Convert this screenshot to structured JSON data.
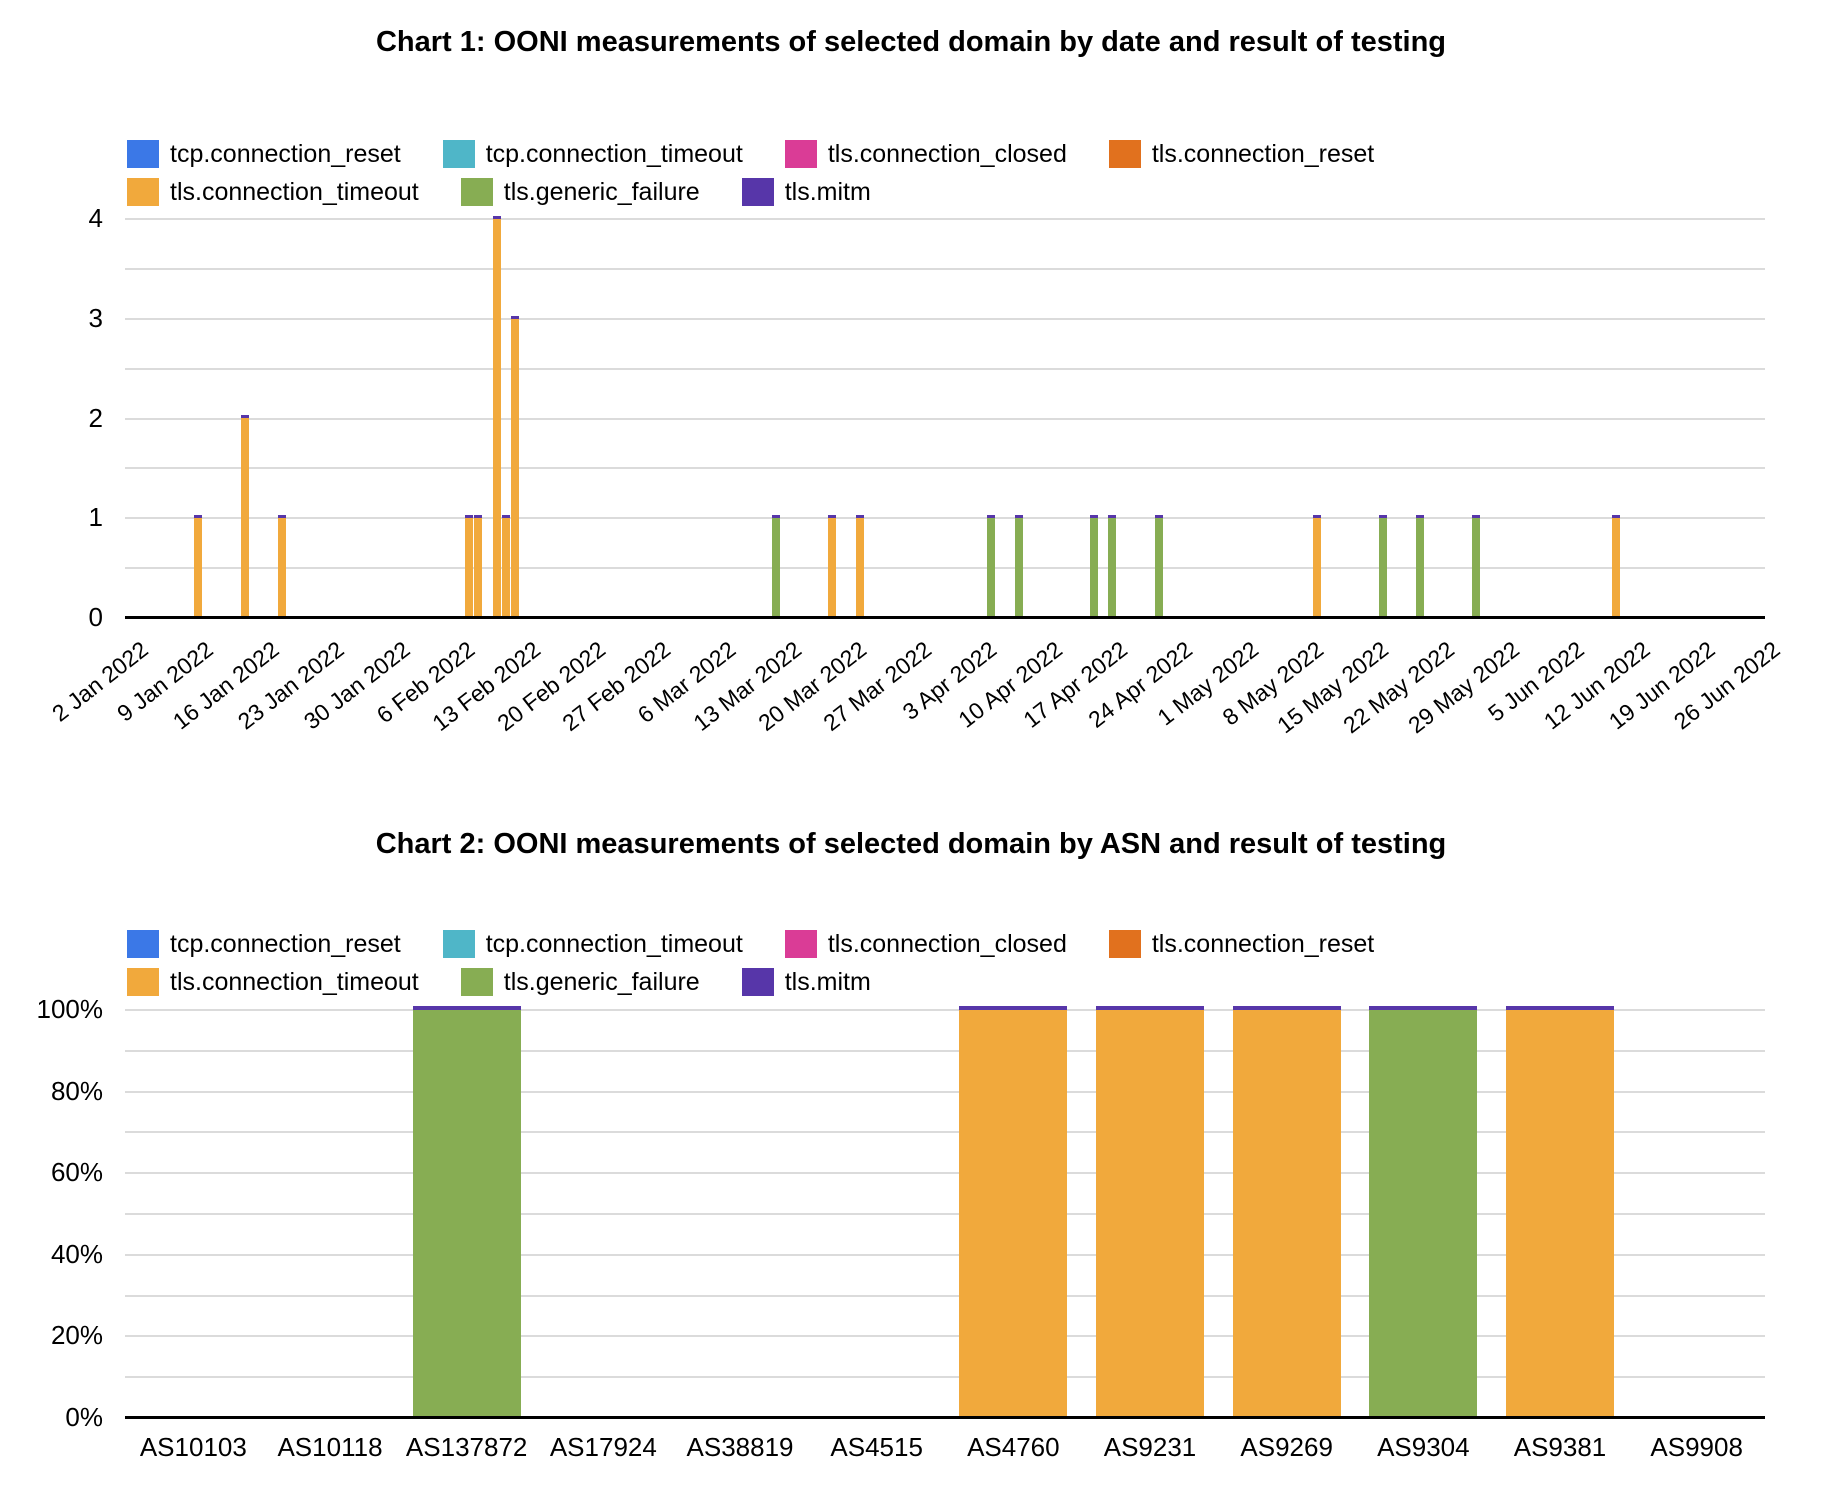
{
  "page": {
    "background": "#FFFFFF"
  },
  "colors": {
    "gridline": "#DBDBDB",
    "axis_baseline": "#000000",
    "text": "#000000",
    "tcp_connection_reset": "#3B78E7",
    "tcp_connection_timeout": "#4FB6C8",
    "tls_connection_closed": "#DA3C96",
    "tls_connection_reset": "#E1711E",
    "tls_connection_timeout": "#F1A93C",
    "tls_generic_failure": "#87AD53",
    "tls_mitm": "#5736A9"
  },
  "chart_data": [
    {
      "type": "bar",
      "subtype": "stacked-column-time-series",
      "title": "Chart 1: OONI measurements of selected domain by date and result of testing",
      "legend_position": "top-left, two rows (4 + 3 items)",
      "grid": "on",
      "series": [
        {
          "name": "tcp.connection_reset",
          "color": "#3B78E7"
        },
        {
          "name": "tcp.connection_timeout",
          "color": "#4FB6C8"
        },
        {
          "name": "tls.connection_closed",
          "color": "#DA3C96"
        },
        {
          "name": "tls.connection_reset",
          "color": "#E1711E"
        },
        {
          "name": "tls.connection_timeout",
          "color": "#F1A93C"
        },
        {
          "name": "tls.generic_failure",
          "color": "#87AD53"
        },
        {
          "name": "tls.mitm",
          "color": "#5736A9"
        }
      ],
      "y_axis": {
        "ticks": [
          0,
          1,
          2,
          3,
          4
        ],
        "min": 0,
        "max": 4,
        "gridline_step": 0.5
      },
      "x_axis": {
        "start_date": "2022-01-02",
        "tick_interval_days": 7,
        "tick_labels": [
          "2 Jan 2022",
          "9 Jan 2022",
          "16 Jan 2022",
          "23 Jan 2022",
          "30 Jan 2022",
          "6 Feb 2022",
          "13 Feb 2022",
          "20 Feb 2022",
          "27 Feb 2022",
          "6 Mar 2022",
          "13 Mar 2022",
          "20 Mar 2022",
          "27 Mar 2022",
          "3 Apr 2022",
          "10 Apr 2022",
          "17 Apr 2022",
          "24 Apr 2022",
          "1 May 2022",
          "8 May 2022",
          "15 May 2022",
          "22 May 2022",
          "29 May 2022",
          "5 Jun 2022",
          "12 Jun 2022",
          "19 Jun 2022",
          "26 Jun 2022"
        ]
      },
      "bar_top_cap": "tls.mitm",
      "bars": [
        {
          "date": "2022-01-09",
          "series": "tls.connection_timeout",
          "value": 1
        },
        {
          "date": "2022-01-14",
          "series": "tls.connection_timeout",
          "value": 2
        },
        {
          "date": "2022-01-18",
          "series": "tls.connection_timeout",
          "value": 1
        },
        {
          "date": "2022-02-07",
          "series": "tls.connection_timeout",
          "value": 1
        },
        {
          "date": "2022-02-08",
          "series": "tls.connection_timeout",
          "value": 1
        },
        {
          "date": "2022-02-10",
          "series": "tls.connection_timeout",
          "value": 4
        },
        {
          "date": "2022-02-11",
          "series": "tls.connection_timeout",
          "value": 1
        },
        {
          "date": "2022-02-12",
          "series": "tls.connection_timeout",
          "value": 3
        },
        {
          "date": "2022-03-12",
          "series": "tls.generic_failure",
          "value": 1
        },
        {
          "date": "2022-03-18",
          "series": "tls.connection_timeout",
          "value": 1
        },
        {
          "date": "2022-03-21",
          "series": "tls.connection_timeout",
          "value": 1
        },
        {
          "date": "2022-04-04",
          "series": "tls.generic_failure",
          "value": 1
        },
        {
          "date": "2022-04-07",
          "series": "tls.generic_failure",
          "value": 1
        },
        {
          "date": "2022-04-15",
          "series": "tls.generic_failure",
          "value": 1
        },
        {
          "date": "2022-04-17",
          "series": "tls.generic_failure",
          "value": 1
        },
        {
          "date": "2022-04-22",
          "series": "tls.generic_failure",
          "value": 1
        },
        {
          "date": "2022-05-09",
          "series": "tls.connection_timeout",
          "value": 1
        },
        {
          "date": "2022-05-16",
          "series": "tls.generic_failure",
          "value": 1
        },
        {
          "date": "2022-05-20",
          "series": "tls.generic_failure",
          "value": 1
        },
        {
          "date": "2022-05-26",
          "series": "tls.generic_failure",
          "value": 1
        },
        {
          "date": "2022-06-10",
          "series": "tls.connection_timeout",
          "value": 1
        }
      ]
    },
    {
      "type": "bar",
      "subtype": "stacked-column-100pct",
      "title": "Chart 2: OONI measurements of selected domain by ASN and result of testing",
      "legend_position": "top-left, two rows (4 + 3 items)",
      "grid": "on",
      "series": [
        {
          "name": "tcp.connection_reset",
          "color": "#3B78E7"
        },
        {
          "name": "tcp.connection_timeout",
          "color": "#4FB6C8"
        },
        {
          "name": "tls.connection_closed",
          "color": "#DA3C96"
        },
        {
          "name": "tls.connection_reset",
          "color": "#E1711E"
        },
        {
          "name": "tls.connection_timeout",
          "color": "#F1A93C"
        },
        {
          "name": "tls.generic_failure",
          "color": "#87AD53"
        },
        {
          "name": "tls.mitm",
          "color": "#5736A9"
        }
      ],
      "y_axis": {
        "tick_labels": [
          "0%",
          "20%",
          "40%",
          "60%",
          "80%",
          "100%"
        ],
        "min": 0,
        "max": 100,
        "gridline_step": 10
      },
      "categories": [
        "AS10103",
        "AS10118",
        "AS137872",
        "AS17924",
        "AS38819",
        "AS4515",
        "AS4760",
        "AS9231",
        "AS9269",
        "AS9304",
        "AS9381",
        "AS9908"
      ],
      "bar_top_cap": "tls.mitm",
      "bars": [
        {
          "asn": "AS137872",
          "series": "tls.generic_failure",
          "value": 100
        },
        {
          "asn": "AS4760",
          "series": "tls.connection_timeout",
          "value": 100
        },
        {
          "asn": "AS9231",
          "series": "tls.connection_timeout",
          "value": 100
        },
        {
          "asn": "AS9269",
          "series": "tls.connection_timeout",
          "value": 100
        },
        {
          "asn": "AS9304",
          "series": "tls.generic_failure",
          "value": 100
        },
        {
          "asn": "AS9381",
          "series": "tls.connection_timeout",
          "value": 100
        }
      ]
    }
  ]
}
